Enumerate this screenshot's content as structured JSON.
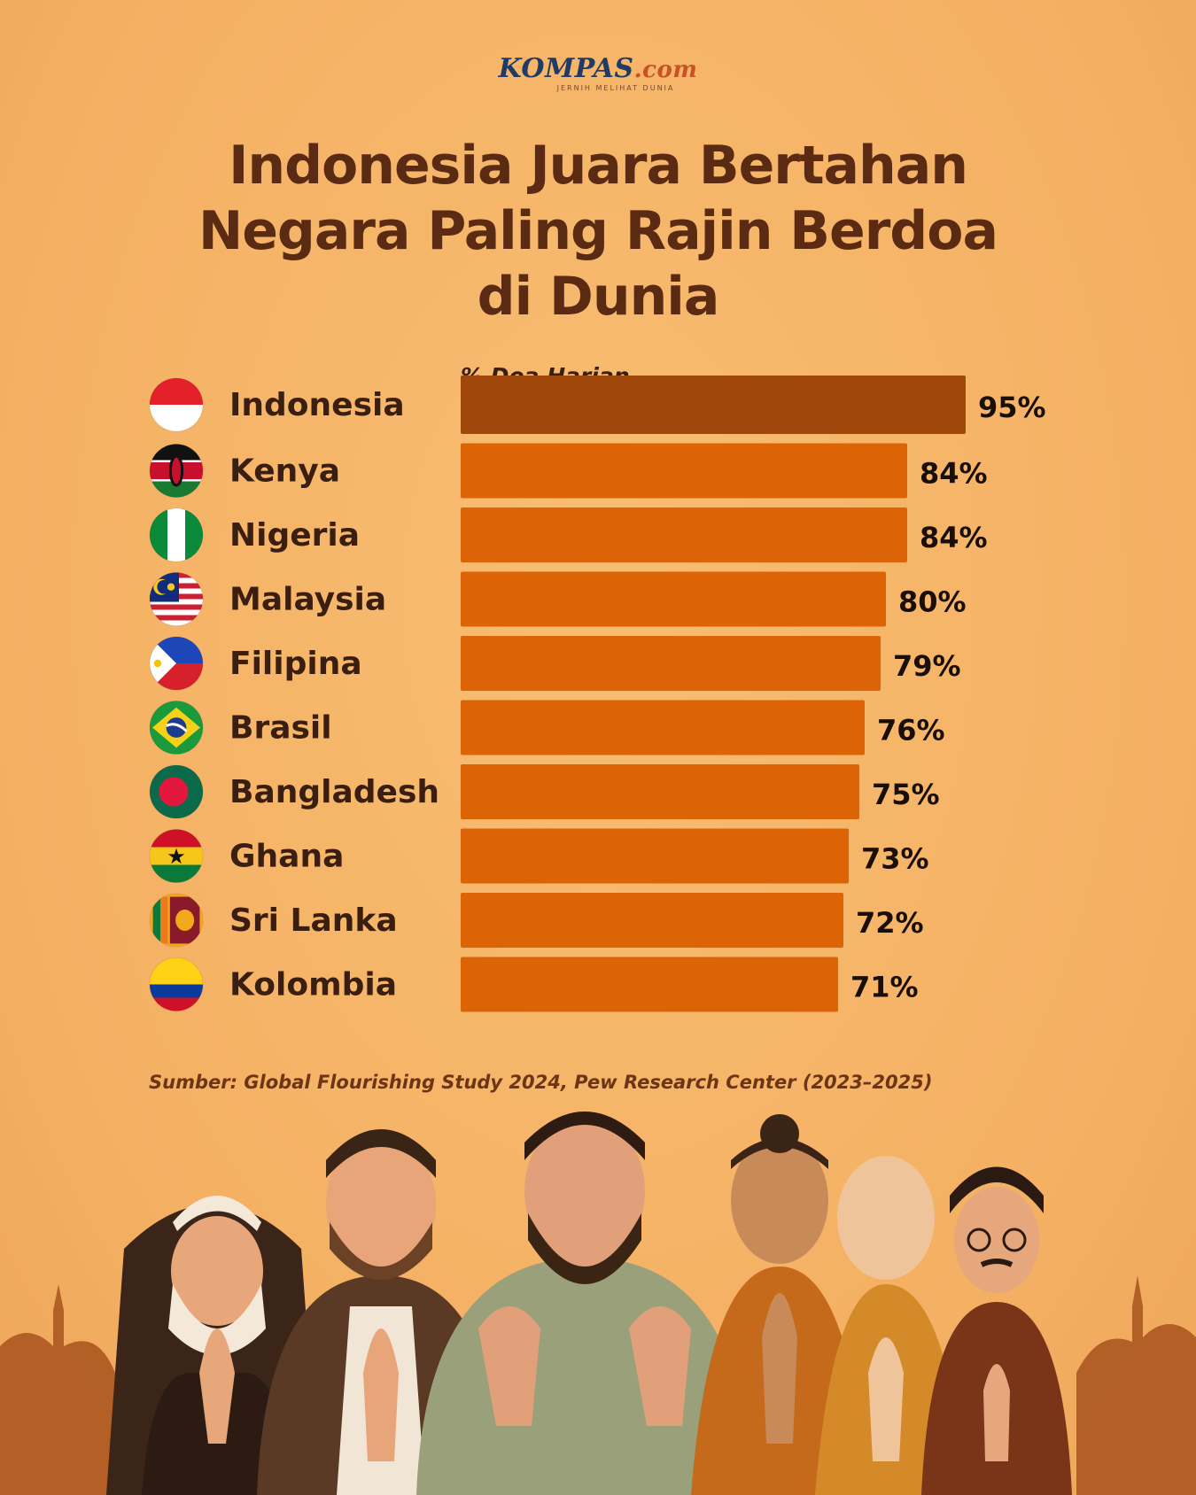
{
  "logo": {
    "name": "KOMPAS",
    "suffix": ".com",
    "tagline": "JERNIH MELIHAT DUNIA"
  },
  "title_lines": [
    "Indonesia Juara Bertahan",
    "Negara Paling Rajin Berdoa",
    "di Dunia"
  ],
  "source": "Sumber: Global Flourishing Study 2024, Pew Research Center (2023–2025)",
  "colors": {
    "highlight_bar": "#a0480b",
    "bar": "#dc6406",
    "text_dark": "#3a1f10",
    "title": "#5a2a12",
    "background": "#f6b467"
  },
  "chart_data": {
    "type": "bar",
    "orientation": "horizontal",
    "title": "Indonesia Juara Bertahan Negara Paling Rajin Berdoa di Dunia",
    "xlabel": "% Doa Harian",
    "ylabel": "",
    "xlim": [
      0,
      100
    ],
    "grid": false,
    "categories": [
      "Indonesia",
      "Kenya",
      "Nigeria",
      "Malaysia",
      "Filipina",
      "Brasil",
      "Bangladesh",
      "Ghana",
      "Sri Lanka",
      "Kolombia"
    ],
    "values": [
      95,
      84,
      84,
      80,
      79,
      76,
      75,
      73,
      72,
      71
    ],
    "value_labels": [
      "95%",
      "84%",
      "84%",
      "80%",
      "79%",
      "76%",
      "75%",
      "73%",
      "72%",
      "71%"
    ],
    "flags": [
      "flag-indonesia-icon",
      "flag-kenya-icon",
      "flag-nigeria-icon",
      "flag-malaysia-icon",
      "flag-philippines-icon",
      "flag-brazil-icon",
      "flag-bangladesh-icon",
      "flag-ghana-icon",
      "flag-sri-lanka-icon",
      "flag-colombia-icon"
    ],
    "highlight": "Indonesia"
  }
}
